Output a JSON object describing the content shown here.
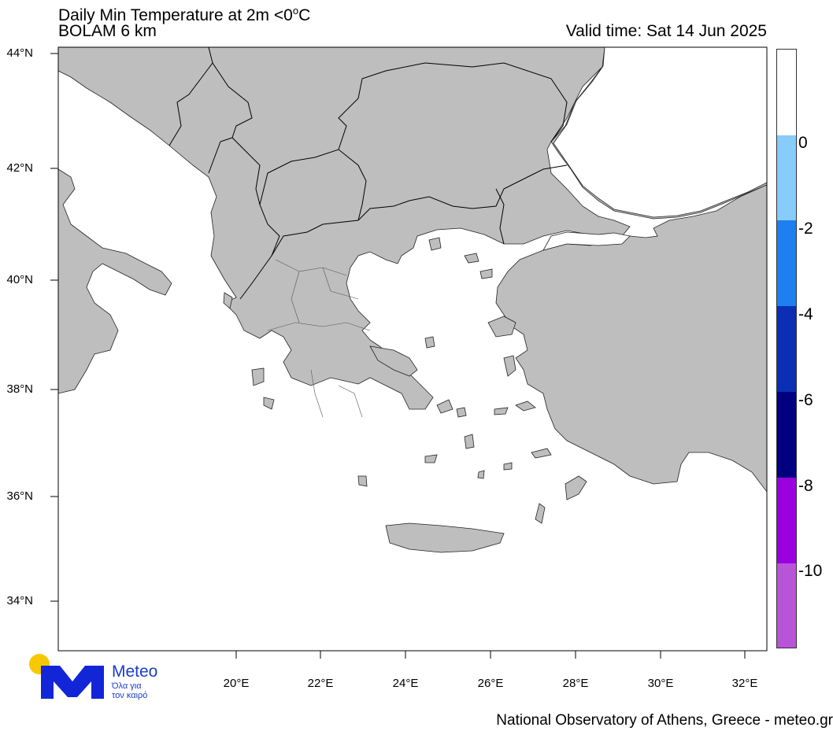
{
  "header": {
    "title_prefix": "Daily Min Temperature at 2m <0",
    "title_degree": "o",
    "title_suffix": "C",
    "model": "BOLAM 6 km",
    "valid_time": "Valid time: Sat 14 Jun 2025"
  },
  "axes": {
    "lat_labels": [
      "44°N",
      "42°N",
      "40°N",
      "38°N",
      "36°N",
      "34°N"
    ],
    "lon_labels": [
      "20°E",
      "22°E",
      "24°E",
      "26°E",
      "28°E",
      "30°E",
      "32°E"
    ]
  },
  "colorbar": {
    "labels": [
      "0",
      "-2",
      "-4",
      "-6",
      "-8",
      "-10"
    ],
    "colors": [
      "#ffffff",
      "#87ccfa",
      "#1e7ff0",
      "#0a2fb5",
      "#000080",
      "#9a00e0",
      "#b854d8"
    ]
  },
  "map": {
    "land_color": "#bebebe",
    "sea_color": "#ffffff"
  },
  "logo": {
    "name": "Meteo",
    "tagline_line1": "Όλα για",
    "tagline_line2": "τον καιρό"
  },
  "footer": {
    "credit": "National Observatory of Athens, Greece - meteo.gr"
  }
}
